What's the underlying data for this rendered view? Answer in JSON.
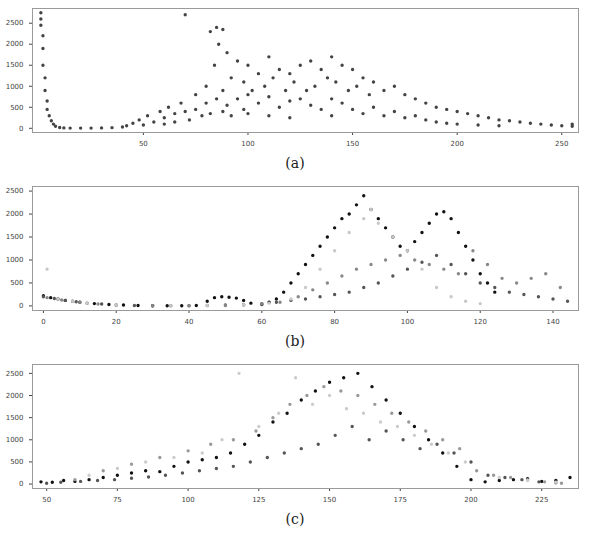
{
  "chart_data": [
    {
      "type": "scatter",
      "title": "(a)",
      "xlim": [
        -3,
        258
      ],
      "xticks": [
        50,
        100,
        150,
        200,
        250
      ],
      "ylim": [
        -100,
        2850
      ],
      "yticks": [
        0,
        500,
        1000,
        1500,
        2000,
        2500
      ],
      "grid": false,
      "marker": "circle",
      "series": [
        {
          "color": "#444444",
          "x": [
            1,
            1,
            1,
            2,
            2,
            2,
            3,
            3,
            4,
            4,
            5,
            6,
            7,
            8,
            10,
            12,
            15,
            20,
            25,
            30,
            35,
            40,
            42,
            45,
            48,
            50,
            52,
            55,
            58,
            60,
            60,
            62,
            65,
            65,
            68,
            70,
            70,
            72,
            75,
            75,
            78,
            80,
            80,
            82,
            82,
            84,
            85,
            85,
            86,
            88,
            88,
            88,
            90,
            90,
            92,
            92,
            95,
            95,
            98,
            98,
            100,
            100,
            100,
            102,
            105,
            105,
            108,
            110,
            110,
            110,
            112,
            115,
            115,
            118,
            120,
            120,
            120,
            122,
            125,
            125,
            128,
            130,
            130,
            132,
            135,
            135,
            138,
            140,
            140,
            140,
            142,
            145,
            145,
            148,
            150,
            150,
            152,
            155,
            155,
            158,
            160,
            160,
            165,
            165,
            170,
            170,
            175,
            175,
            180,
            180,
            185,
            185,
            190,
            190,
            195,
            195,
            200,
            200,
            205,
            210,
            210,
            215,
            220,
            220,
            225,
            230,
            235,
            240,
            245,
            250,
            255,
            255
          ],
          "values": [
            2750,
            2600,
            2450,
            2200,
            1900,
            1500,
            1200,
            900,
            650,
            450,
            300,
            180,
            100,
            50,
            20,
            10,
            5,
            5,
            5,
            10,
            15,
            30,
            60,
            120,
            200,
            80,
            300,
            150,
            400,
            250,
            100,
            500,
            350,
            150,
            600,
            2700,
            400,
            200,
            800,
            450,
            300,
            1000,
            600,
            2300,
            350,
            1500,
            2400,
            700,
            2000,
            2350,
            900,
            400,
            1800,
            550,
            1200,
            300,
            1600,
            700,
            1100,
            450,
            1500,
            800,
            350,
            900,
            1300,
            600,
            1000,
            1700,
            750,
            300,
            1200,
            1400,
            500,
            900,
            1300,
            650,
            250,
            1100,
            1500,
            700,
            900,
            1600,
            550,
            1000,
            1400,
            450,
            1200,
            1700,
            700,
            300,
            1100,
            1500,
            600,
            900,
            1400,
            450,
            1000,
            1200,
            350,
            800,
            1100,
            500,
            900,
            300,
            1000,
            400,
            800,
            250,
            700,
            300,
            600,
            200,
            500,
            150,
            450,
            120,
            400,
            100,
            350,
            300,
            80,
            250,
            200,
            60,
            180,
            150,
            120,
            100,
            80,
            60,
            50,
            100
          ]
        }
      ]
    },
    {
      "type": "scatter",
      "title": "(b)",
      "xlim": [
        -3,
        147
      ],
      "xticks": [
        0,
        20,
        40,
        60,
        80,
        100,
        120,
        140
      ],
      "ylim": [
        -100,
        2600
      ],
      "yticks": [
        0,
        500,
        1000,
        1500,
        2000,
        2500
      ],
      "grid": false,
      "marker": "circle",
      "series": [
        {
          "color": "#111111",
          "x": [
            0,
            2,
            4,
            6,
            8,
            10,
            14,
            18,
            22,
            26,
            30,
            34,
            38,
            42,
            45,
            47,
            49,
            51,
            53,
            55,
            57,
            60,
            62,
            64,
            66,
            68,
            70,
            72,
            74,
            76,
            78,
            80,
            82,
            84,
            86,
            88,
            90,
            92,
            94,
            96,
            98,
            100,
            102,
            104,
            106,
            108,
            110,
            112,
            114,
            116,
            118,
            120,
            122,
            124
          ],
          "values": [
            220,
            180,
            150,
            120,
            100,
            80,
            50,
            30,
            20,
            10,
            5,
            5,
            5,
            10,
            100,
            180,
            200,
            190,
            170,
            120,
            60,
            30,
            80,
            150,
            300,
            500,
            700,
            900,
            1100,
            1300,
            1500,
            1700,
            1900,
            2000,
            2200,
            2400,
            2100,
            1900,
            1700,
            1500,
            1300,
            1200,
            1400,
            1600,
            1800,
            2000,
            2050,
            1900,
            1600,
            1300,
            1000,
            700,
            500,
            300
          ]
        },
        {
          "color": "#555555",
          "x": [
            0,
            3,
            6,
            9,
            12,
            16,
            20,
            25,
            30,
            35,
            40,
            45,
            50,
            55,
            60,
            64,
            68,
            72,
            76,
            80,
            84,
            88,
            92,
            96,
            100,
            104,
            108,
            112,
            116,
            120,
            124,
            128,
            132,
            136,
            140,
            144
          ],
          "values": [
            200,
            160,
            120,
            90,
            60,
            40,
            20,
            10,
            5,
            5,
            5,
            10,
            20,
            30,
            50,
            80,
            120,
            150,
            200,
            250,
            300,
            400,
            500,
            650,
            800,
            950,
            1100,
            900,
            700,
            500,
            400,
            300,
            250,
            200,
            150,
            100
          ]
        },
        {
          "color": "#888888",
          "x": [
            1,
            5,
            10,
            15,
            20,
            30,
            40,
            50,
            55,
            60,
            65,
            70,
            74,
            78,
            82,
            86,
            90,
            94,
            98,
            102,
            106,
            110,
            114,
            118,
            122,
            126,
            130,
            134,
            138,
            142
          ],
          "values": [
            180,
            130,
            80,
            40,
            15,
            5,
            5,
            10,
            20,
            40,
            80,
            200,
            350,
            500,
            650,
            800,
            900,
            1000,
            1100,
            1000,
            900,
            800,
            700,
            1200,
            900,
            600,
            500,
            600,
            700,
            400
          ]
        },
        {
          "color": "#c8c8c8",
          "x": [
            1,
            4,
            8,
            12,
            20,
            35,
            45,
            55,
            62,
            68,
            72,
            76,
            80,
            84,
            88,
            90,
            92,
            96,
            100,
            104,
            108,
            112,
            116,
            120
          ],
          "values": [
            800,
            150,
            100,
            60,
            20,
            5,
            10,
            30,
            60,
            150,
            400,
            800,
            1200,
            1600,
            1900,
            2100,
            1800,
            1500,
            1200,
            800,
            400,
            200,
            100,
            50
          ]
        }
      ]
    },
    {
      "type": "scatter",
      "title": "(c)",
      "xlim": [
        45,
        238
      ],
      "xticks": [
        50,
        75,
        100,
        125,
        150,
        175,
        200,
        225
      ],
      "ylim": [
        -100,
        2700
      ],
      "yticks": [
        0,
        500,
        1000,
        1500,
        2000,
        2500
      ],
      "grid": false,
      "marker": "circle",
      "series": [
        {
          "color": "#111111",
          "x": [
            48,
            52,
            56,
            60,
            65,
            70,
            75,
            80,
            85,
            90,
            95,
            100,
            105,
            110,
            115,
            120,
            125,
            130,
            135,
            140,
            145,
            150,
            155,
            160,
            165,
            170,
            175,
            180,
            185,
            190,
            195,
            200,
            205,
            210,
            215,
            220,
            225,
            230,
            235
          ],
          "values": [
            50,
            40,
            80,
            60,
            100,
            150,
            200,
            250,
            300,
            280,
            400,
            500,
            550,
            600,
            700,
            900,
            1100,
            1400,
            1600,
            1900,
            2100,
            2300,
            2400,
            2500,
            2200,
            1900,
            1600,
            1300,
            1000,
            700,
            400,
            100,
            50,
            80,
            100,
            120,
            60,
            80,
            150
          ]
        },
        {
          "color": "#555555",
          "x": [
            50,
            55,
            62,
            68,
            74,
            80,
            86,
            92,
            98,
            104,
            110,
            116,
            122,
            128,
            134,
            140,
            146,
            152,
            158,
            164,
            170,
            176,
            182,
            188,
            194,
            200,
            206,
            212,
            218,
            224,
            230
          ],
          "values": [
            20,
            40,
            60,
            80,
            100,
            130,
            160,
            200,
            250,
            300,
            350,
            400,
            500,
            600,
            700,
            800,
            900,
            1100,
            1300,
            1000,
            1200,
            1000,
            800,
            900,
            700,
            500,
            200,
            150,
            100,
            50,
            30
          ]
        },
        {
          "color": "#999999",
          "x": [
            60,
            70,
            80,
            90,
            100,
            108,
            116,
            124,
            130,
            136,
            142,
            148,
            154,
            160,
            166,
            172,
            178,
            184,
            190,
            196,
            202,
            208,
            214,
            220,
            226,
            232
          ],
          "values": [
            100,
            300,
            450,
            600,
            750,
            900,
            1000,
            1200,
            1500,
            1800,
            2000,
            2200,
            2100,
            2000,
            1800,
            1600,
            1400,
            1200,
            1000,
            800,
            300,
            200,
            150,
            100,
            50,
            20
          ]
        },
        {
          "color": "#cccccc",
          "x": [
            65,
            75,
            85,
            95,
            105,
            112,
            118,
            125,
            132,
            138,
            144,
            150,
            156,
            162,
            168,
            174,
            180,
            186,
            192,
            198,
            210,
            220,
            230
          ],
          "values": [
            200,
            350,
            500,
            600,
            700,
            1000,
            2500,
            1300,
            1600,
            2400,
            1800,
            2000,
            1700,
            1600,
            1400,
            1300,
            1100,
            900,
            700,
            500,
            150,
            80,
            40
          ]
        }
      ]
    }
  ]
}
